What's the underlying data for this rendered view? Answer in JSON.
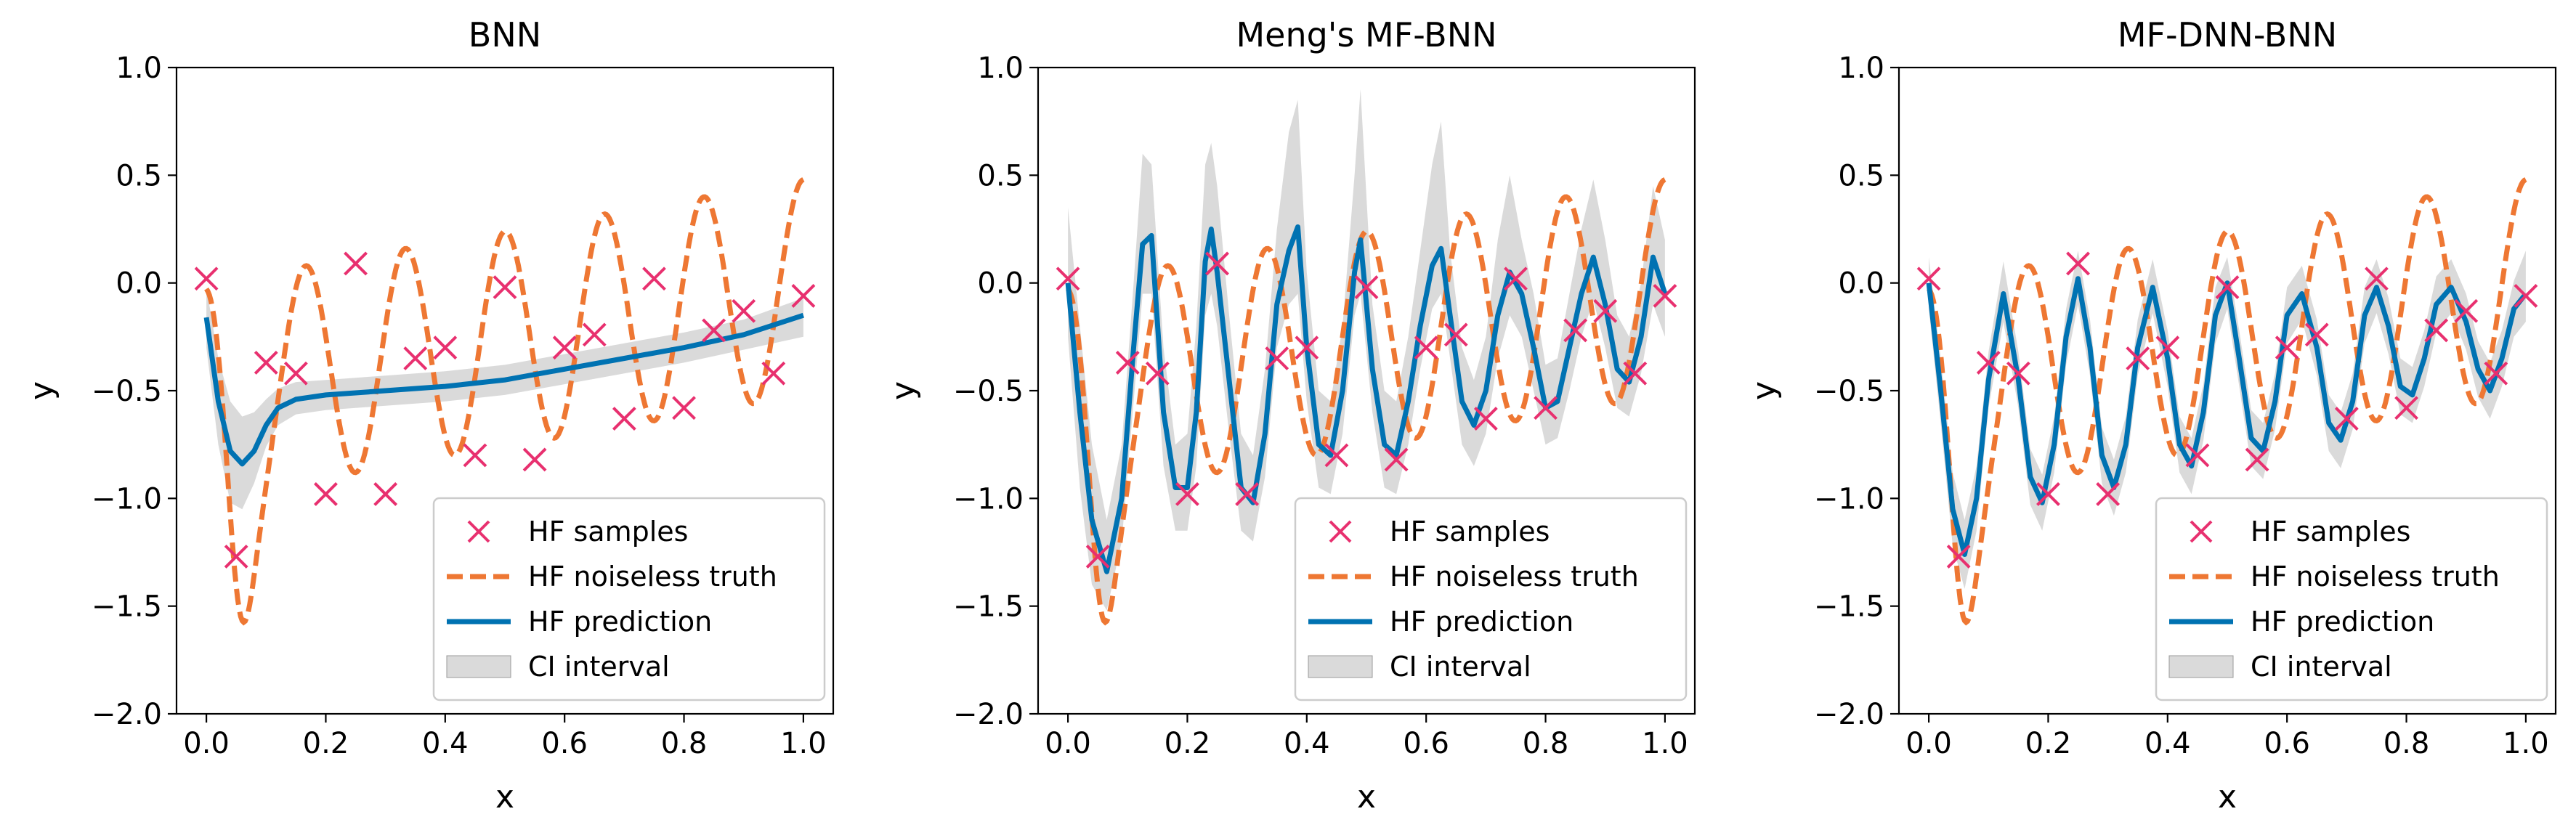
{
  "colors": {
    "samples": "#e8306f",
    "truth": "#ee7733",
    "prediction": "#0072b2",
    "ci_fill": "#bbbbbb"
  },
  "chart_data": [
    {
      "type": "line",
      "title": "BNN",
      "xlabel": "x",
      "ylabel": "y",
      "xlim": [
        -0.05,
        1.05
      ],
      "ylim": [
        -2.0,
        1.0
      ],
      "xticks": [
        "0.0",
        "0.2",
        "0.4",
        "0.6",
        "0.8",
        "1.0"
      ],
      "yticks": [
        "1.0",
        "0.5",
        "0.0",
        "−0.5",
        "−1.0",
        "−1.5",
        "−2.0"
      ],
      "grid": false,
      "legend_position": "lower-right",
      "legend": [
        "HF samples",
        "HF noiseless truth",
        "HF prediction",
        "CI interval"
      ],
      "hf_samples": {
        "x": [
          0.0,
          0.05,
          0.1,
          0.15,
          0.2,
          0.25,
          0.3,
          0.35,
          0.4,
          0.45,
          0.5,
          0.55,
          0.6,
          0.65,
          0.7,
          0.75,
          0.8,
          0.85,
          0.9,
          0.95,
          1.0
        ],
        "y": [
          0.02,
          -1.27,
          -0.37,
          -0.42,
          -0.98,
          0.09,
          -0.98,
          -0.35,
          -0.3,
          -0.8,
          -0.02,
          -0.82,
          -0.3,
          -0.24,
          -0.63,
          0.02,
          -0.58,
          -0.22,
          -0.13,
          -0.42,
          -0.06
        ]
      },
      "hf_prediction": {
        "x": [
          0.0,
          0.02,
          0.04,
          0.06,
          0.08,
          0.1,
          0.12,
          0.15,
          0.2,
          0.25,
          0.3,
          0.4,
          0.5,
          0.6,
          0.7,
          0.8,
          0.9,
          1.0
        ],
        "y": [
          -0.16,
          -0.55,
          -0.78,
          -0.84,
          -0.78,
          -0.66,
          -0.58,
          -0.54,
          -0.52,
          -0.51,
          -0.5,
          -0.48,
          -0.45,
          -0.4,
          -0.35,
          -0.3,
          -0.24,
          -0.15
        ]
      },
      "ci_interval": {
        "x": [
          0.0,
          0.02,
          0.04,
          0.06,
          0.08,
          0.1,
          0.12,
          0.15,
          0.2,
          0.25,
          0.3,
          0.4,
          0.5,
          0.6,
          0.7,
          0.8,
          0.9,
          1.0
        ],
        "lower": [
          -0.3,
          -0.75,
          -1.02,
          -1.05,
          -0.93,
          -0.76,
          -0.66,
          -0.61,
          -0.59,
          -0.58,
          -0.57,
          -0.55,
          -0.52,
          -0.47,
          -0.42,
          -0.37,
          -0.31,
          -0.25
        ],
        "upper": [
          -0.02,
          -0.35,
          -0.55,
          -0.62,
          -0.6,
          -0.54,
          -0.49,
          -0.46,
          -0.45,
          -0.44,
          -0.43,
          -0.41,
          -0.38,
          -0.33,
          -0.28,
          -0.23,
          -0.17,
          -0.07
        ]
      }
    },
    {
      "type": "line",
      "title": "Meng's MF-BNN",
      "xlabel": "x",
      "ylabel": "y",
      "xlim": [
        -0.05,
        1.05
      ],
      "ylim": [
        -2.0,
        1.0
      ],
      "xticks": [
        "0.0",
        "0.2",
        "0.4",
        "0.6",
        "0.8",
        "1.0"
      ],
      "yticks": [
        "1.0",
        "0.5",
        "0.0",
        "−0.5",
        "−1.0",
        "−1.5",
        "−2.0"
      ],
      "grid": false,
      "legend_position": "lower-right",
      "legend": [
        "HF samples",
        "HF noiseless truth",
        "HF prediction",
        "CI interval"
      ],
      "hf_samples": {
        "x": [
          0.0,
          0.05,
          0.1,
          0.15,
          0.2,
          0.25,
          0.3,
          0.35,
          0.4,
          0.45,
          0.5,
          0.55,
          0.6,
          0.65,
          0.7,
          0.75,
          0.8,
          0.85,
          0.9,
          0.95,
          1.0
        ],
        "y": [
          0.02,
          -1.27,
          -0.37,
          -0.42,
          -0.98,
          0.09,
          -0.98,
          -0.35,
          -0.3,
          -0.8,
          -0.02,
          -0.82,
          -0.3,
          -0.24,
          -0.63,
          0.02,
          -0.58,
          -0.22,
          -0.13,
          -0.42,
          -0.06
        ]
      },
      "hf_prediction": {
        "x": [
          0.0,
          0.02,
          0.04,
          0.065,
          0.09,
          0.11,
          0.125,
          0.14,
          0.16,
          0.18,
          0.2,
          0.215,
          0.23,
          0.24,
          0.25,
          0.27,
          0.29,
          0.31,
          0.33,
          0.35,
          0.37,
          0.385,
          0.4,
          0.42,
          0.44,
          0.46,
          0.48,
          0.49,
          0.51,
          0.53,
          0.55,
          0.57,
          0.59,
          0.61,
          0.625,
          0.64,
          0.66,
          0.68,
          0.7,
          0.72,
          0.74,
          0.76,
          0.78,
          0.8,
          0.82,
          0.84,
          0.86,
          0.88,
          0.9,
          0.92,
          0.94,
          0.96,
          0.98,
          1.0
        ],
        "y": [
          0.0,
          -0.6,
          -1.1,
          -1.34,
          -1.0,
          -0.3,
          0.18,
          0.22,
          -0.6,
          -0.95,
          -0.95,
          -0.6,
          0.1,
          0.25,
          0.05,
          -0.45,
          -0.95,
          -1.02,
          -0.7,
          -0.1,
          0.15,
          0.26,
          -0.3,
          -0.75,
          -0.8,
          -0.5,
          0.05,
          0.2,
          -0.4,
          -0.75,
          -0.8,
          -0.55,
          -0.2,
          0.08,
          0.16,
          -0.15,
          -0.55,
          -0.66,
          -0.5,
          -0.15,
          0.05,
          -0.05,
          -0.3,
          -0.58,
          -0.55,
          -0.3,
          -0.05,
          0.12,
          -0.1,
          -0.4,
          -0.46,
          -0.25,
          0.12,
          -0.05
        ]
      },
      "ci_interval": {
        "x": [
          0.0,
          0.02,
          0.04,
          0.065,
          0.09,
          0.11,
          0.125,
          0.14,
          0.16,
          0.18,
          0.2,
          0.215,
          0.23,
          0.24,
          0.25,
          0.27,
          0.29,
          0.31,
          0.33,
          0.35,
          0.37,
          0.385,
          0.4,
          0.42,
          0.44,
          0.46,
          0.48,
          0.49,
          0.51,
          0.53,
          0.55,
          0.57,
          0.59,
          0.61,
          0.625,
          0.64,
          0.66,
          0.68,
          0.7,
          0.72,
          0.74,
          0.76,
          0.78,
          0.8,
          0.82,
          0.84,
          0.86,
          0.88,
          0.9,
          0.92,
          0.94,
          0.96,
          0.98,
          1.0
        ],
        "lower": [
          -0.25,
          -0.95,
          -1.4,
          -1.52,
          -1.2,
          -0.55,
          -0.05,
          -0.05,
          -0.85,
          -1.15,
          -1.15,
          -0.85,
          -0.15,
          -0.05,
          -0.2,
          -0.7,
          -1.15,
          -1.2,
          -0.9,
          -0.3,
          -0.1,
          -0.05,
          -0.55,
          -0.95,
          -0.98,
          -0.7,
          -0.15,
          -0.05,
          -0.6,
          -0.95,
          -0.98,
          -0.75,
          -0.4,
          -0.12,
          -0.05,
          -0.35,
          -0.75,
          -0.85,
          -0.7,
          -0.35,
          -0.15,
          -0.25,
          -0.5,
          -0.75,
          -0.72,
          -0.5,
          -0.25,
          -0.08,
          -0.3,
          -0.58,
          -0.62,
          -0.42,
          -0.1,
          -0.25
        ],
        "upper": [
          0.35,
          -0.2,
          -0.75,
          -1.1,
          -0.75,
          0.0,
          0.6,
          0.55,
          -0.3,
          -0.75,
          -0.7,
          -0.2,
          0.55,
          0.65,
          0.45,
          -0.15,
          -0.7,
          -0.8,
          -0.4,
          0.25,
          0.7,
          0.85,
          0.05,
          -0.5,
          -0.55,
          -0.2,
          0.5,
          0.9,
          -0.1,
          -0.5,
          -0.55,
          -0.25,
          0.15,
          0.55,
          0.75,
          0.15,
          -0.3,
          -0.45,
          -0.25,
          0.2,
          0.5,
          0.2,
          -0.05,
          -0.38,
          -0.35,
          -0.05,
          0.25,
          0.48,
          0.2,
          -0.15,
          -0.25,
          0.0,
          0.45,
          0.2
        ]
      }
    },
    {
      "type": "line",
      "title": "MF-DNN-BNN",
      "xlabel": "x",
      "ylabel": "y",
      "xlim": [
        -0.05,
        1.05
      ],
      "ylim": [
        -2.0,
        1.0
      ],
      "xticks": [
        "0.0",
        "0.2",
        "0.4",
        "0.6",
        "0.8",
        "1.0"
      ],
      "yticks": [
        "1.0",
        "0.5",
        "0.0",
        "−0.5",
        "−1.0",
        "−1.5",
        "−2.0"
      ],
      "grid": false,
      "legend_position": "lower-right",
      "legend": [
        "HF samples",
        "HF noiseless truth",
        "HF prediction",
        "CI interval"
      ],
      "hf_samples": {
        "x": [
          0.0,
          0.05,
          0.1,
          0.15,
          0.2,
          0.25,
          0.3,
          0.35,
          0.4,
          0.45,
          0.5,
          0.55,
          0.6,
          0.65,
          0.7,
          0.75,
          0.8,
          0.85,
          0.9,
          0.95,
          1.0
        ],
        "y": [
          0.02,
          -1.27,
          -0.37,
          -0.42,
          -0.98,
          0.09,
          -0.98,
          -0.35,
          -0.3,
          -0.8,
          -0.02,
          -0.82,
          -0.3,
          -0.24,
          -0.63,
          0.02,
          -0.58,
          -0.22,
          -0.13,
          -0.42,
          -0.06
        ]
      },
      "hf_prediction": {
        "x": [
          0.0,
          0.02,
          0.04,
          0.06,
          0.08,
          0.1,
          0.125,
          0.15,
          0.17,
          0.19,
          0.21,
          0.23,
          0.25,
          0.27,
          0.29,
          0.31,
          0.33,
          0.35,
          0.375,
          0.4,
          0.42,
          0.44,
          0.46,
          0.48,
          0.5,
          0.52,
          0.54,
          0.56,
          0.58,
          0.6,
          0.625,
          0.65,
          0.67,
          0.69,
          0.71,
          0.73,
          0.75,
          0.77,
          0.79,
          0.81,
          0.83,
          0.85,
          0.875,
          0.9,
          0.92,
          0.94,
          0.96,
          0.98,
          1.0
        ],
        "y": [
          0.0,
          -0.5,
          -1.05,
          -1.26,
          -1.0,
          -0.45,
          -0.05,
          -0.45,
          -0.9,
          -1.02,
          -0.75,
          -0.25,
          0.02,
          -0.3,
          -0.8,
          -0.95,
          -0.75,
          -0.3,
          -0.02,
          -0.35,
          -0.75,
          -0.85,
          -0.6,
          -0.15,
          0.0,
          -0.35,
          -0.72,
          -0.78,
          -0.55,
          -0.15,
          -0.05,
          -0.3,
          -0.65,
          -0.73,
          -0.55,
          -0.15,
          -0.02,
          -0.2,
          -0.48,
          -0.52,
          -0.35,
          -0.1,
          -0.02,
          -0.18,
          -0.4,
          -0.5,
          -0.35,
          -0.12,
          -0.05
        ]
      },
      "ci_interval": {
        "x": [
          0.0,
          0.02,
          0.04,
          0.06,
          0.08,
          0.1,
          0.125,
          0.15,
          0.17,
          0.19,
          0.21,
          0.23,
          0.25,
          0.27,
          0.29,
          0.31,
          0.33,
          0.35,
          0.375,
          0.4,
          0.42,
          0.44,
          0.46,
          0.48,
          0.5,
          0.52,
          0.54,
          0.56,
          0.58,
          0.6,
          0.625,
          0.65,
          0.67,
          0.69,
          0.71,
          0.73,
          0.75,
          0.77,
          0.79,
          0.81,
          0.83,
          0.85,
          0.875,
          0.9,
          0.92,
          0.94,
          0.96,
          0.98,
          1.0
        ],
        "lower": [
          -0.12,
          -0.65,
          -1.22,
          -1.42,
          -1.15,
          -0.58,
          -0.18,
          -0.58,
          -1.03,
          -1.15,
          -0.88,
          -0.38,
          -0.1,
          -0.43,
          -0.93,
          -1.08,
          -0.88,
          -0.43,
          -0.14,
          -0.48,
          -0.88,
          -0.98,
          -0.73,
          -0.28,
          -0.12,
          -0.48,
          -0.85,
          -0.91,
          -0.68,
          -0.28,
          -0.17,
          -0.43,
          -0.78,
          -0.86,
          -0.68,
          -0.28,
          -0.14,
          -0.33,
          -0.61,
          -0.65,
          -0.48,
          -0.23,
          -0.14,
          -0.31,
          -0.53,
          -0.63,
          -0.48,
          -0.25,
          -0.18
        ],
        "upper": [
          0.12,
          -0.35,
          -0.88,
          -1.1,
          -0.85,
          -0.32,
          0.1,
          -0.32,
          -0.77,
          -0.89,
          -0.62,
          -0.12,
          0.15,
          -0.17,
          -0.67,
          -0.82,
          -0.62,
          -0.17,
          0.11,
          -0.22,
          -0.62,
          -0.72,
          -0.47,
          -0.02,
          0.12,
          -0.22,
          -0.59,
          -0.65,
          -0.42,
          -0.02,
          0.08,
          -0.17,
          -0.52,
          -0.6,
          -0.42,
          -0.02,
          0.11,
          -0.07,
          -0.35,
          -0.39,
          -0.22,
          0.03,
          0.11,
          -0.05,
          -0.27,
          -0.37,
          -0.22,
          0.01,
          0.15
        ]
      }
    }
  ]
}
